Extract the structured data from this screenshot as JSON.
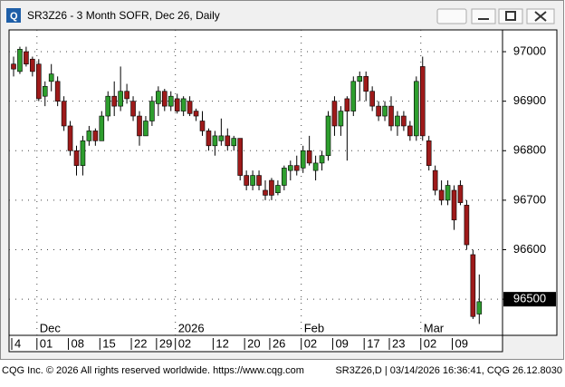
{
  "chart_data": {
    "type": "candlestick",
    "title": "SR3Z26 - 3 Month SOFR, Dec 26, Daily",
    "categories": [
      "4",
      null,
      null,
      null,
      "01",
      null,
      null,
      null,
      null,
      "08",
      null,
      null,
      null,
      null,
      "15",
      null,
      null,
      null,
      null,
      "22",
      null,
      null,
      null,
      "29",
      null,
      null,
      "02",
      null,
      null,
      null,
      null,
      null,
      "12",
      null,
      null,
      null,
      null,
      "20",
      null,
      null,
      null,
      "26",
      null,
      null,
      null,
      null,
      "02",
      null,
      null,
      null,
      null,
      "09",
      null,
      null,
      null,
      null,
      "17",
      null,
      null,
      null,
      "23",
      null,
      null,
      null,
      null,
      "02",
      null,
      null,
      null,
      null,
      "09",
      null,
      null,
      null,
      null
    ],
    "month_labels": [
      null,
      null,
      null,
      null,
      "Dec",
      null,
      null,
      null,
      null,
      null,
      null,
      null,
      null,
      null,
      null,
      null,
      null,
      null,
      null,
      null,
      null,
      null,
      null,
      null,
      null,
      null,
      "2026",
      null,
      null,
      null,
      null,
      null,
      null,
      null,
      null,
      null,
      null,
      null,
      null,
      null,
      null,
      null,
      null,
      null,
      null,
      null,
      "Feb",
      null,
      null,
      null,
      null,
      null,
      null,
      null,
      null,
      null,
      null,
      null,
      null,
      null,
      null,
      null,
      null,
      null,
      null,
      "Mar",
      null,
      null,
      null,
      null,
      null,
      null,
      null,
      null,
      null
    ],
    "open": [
      96975,
      96960,
      97000,
      96985,
      96975,
      96910,
      96940,
      96940,
      96900,
      96850,
      96800,
      96770,
      96820,
      96840,
      96820,
      96870,
      96910,
      96890,
      96920,
      96900,
      96870,
      96830,
      96860,
      96895,
      96920,
      96890,
      96905,
      96880,
      96900,
      96880,
      96860,
      96840,
      96810,
      96820,
      96830,
      96810,
      96825,
      96750,
      96730,
      96750,
      96720,
      96740,
      96715,
      96730,
      96760,
      96770,
      96765,
      96800,
      96760,
      96775,
      96790,
      96900,
      96850,
      96905,
      96880,
      96940,
      96950,
      96920,
      96890,
      96870,
      96890,
      96850,
      96870,
      96850,
      96830,
      96970,
      96820,
      96760,
      96720,
      96700,
      96720,
      96730,
      96690,
      96590,
      96470
    ],
    "high": [
      96990,
      97010,
      97010,
      96990,
      96985,
      96940,
      96975,
      96950,
      96910,
      96860,
      96810,
      96830,
      96850,
      96845,
      96880,
      96920,
      96940,
      96970,
      96935,
      96910,
      96880,
      96870,
      96910,
      96930,
      96925,
      96920,
      96915,
      96910,
      96910,
      96885,
      96880,
      96845,
      96840,
      96865,
      96845,
      96830,
      96825,
      96760,
      96760,
      96760,
      96740,
      96745,
      96740,
      96770,
      96780,
      96790,
      96810,
      96830,
      96790,
      96800,
      96880,
      96910,
      96890,
      96910,
      96950,
      96960,
      96960,
      96930,
      96900,
      96900,
      96910,
      96880,
      96880,
      96860,
      96950,
      96990,
      96830,
      96770,
      96740,
      96740,
      96730,
      96740,
      96700,
      96600,
      96550
    ],
    "low": [
      96950,
      96955,
      96970,
      96950,
      96900,
      96890,
      96920,
      96890,
      96840,
      96790,
      96750,
      96750,
      96810,
      96810,
      96820,
      96860,
      96870,
      96880,
      96895,
      96860,
      96810,
      96830,
      96850,
      96870,
      96880,
      96880,
      96875,
      96870,
      96870,
      96860,
      96830,
      96800,
      96790,
      96810,
      96800,
      96800,
      96740,
      96720,
      96720,
      96720,
      96700,
      96700,
      96710,
      96720,
      96740,
      96750,
      96755,
      96770,
      96740,
      96760,
      96780,
      96830,
      96830,
      96780,
      96870,
      96900,
      96900,
      96880,
      96860,
      96860,
      96840,
      96830,
      96840,
      96820,
      96820,
      96820,
      96760,
      96710,
      96690,
      96690,
      96640,
      96690,
      96600,
      96460,
      96450
    ],
    "close": [
      96965,
      97005,
      96975,
      96960,
      96905,
      96930,
      96955,
      96900,
      96850,
      96800,
      96770,
      96820,
      96840,
      96820,
      96870,
      96910,
      96890,
      96920,
      96905,
      96870,
      96830,
      96860,
      96900,
      96920,
      96890,
      96910,
      96880,
      96905,
      96875,
      96870,
      96840,
      96810,
      96830,
      96830,
      96810,
      96825,
      96750,
      96730,
      96750,
      96730,
      96710,
      96710,
      96730,
      96765,
      96770,
      96760,
      96800,
      96775,
      96775,
      96790,
      96870,
      96850,
      96880,
      96880,
      96940,
      96950,
      96920,
      96890,
      96870,
      96890,
      96850,
      96870,
      96850,
      96830,
      96940,
      96830,
      96770,
      96720,
      96700,
      96730,
      96660,
      96695,
      96610,
      96465,
      96495
    ],
    "up_color": "#2e9e2e",
    "down_color": "#9e1a1a",
    "ylim": [
      96427,
      97044
    ],
    "yticks": [
      96500,
      96600,
      96700,
      96800,
      96900,
      97000
    ],
    "grid": true,
    "last_price": 96500
  },
  "footer_left": "CQG Inc. © 2026 All rights reserved worldwide. https://www.cqg.com",
  "footer_right": "SR3Z26,D | 03/14/2026 16:36:41, CQG 26.12.8030"
}
